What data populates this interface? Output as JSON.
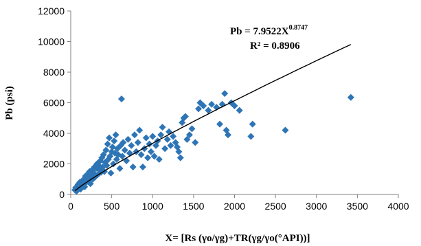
{
  "chart_data": {
    "type": "scatter",
    "title": "",
    "ylabel": "Pb (psi)",
    "xlabel": "X= [Rs (γo/γg)+TR(γg/γo(°API))]",
    "xlim": [
      0,
      4000
    ],
    "ylim": [
      0,
      12000
    ],
    "x_ticks": [
      "0",
      "500",
      "1000",
      "1500",
      "2000",
      "2500",
      "3000",
      "3500",
      "4000"
    ],
    "y_ticks": [
      "0",
      "2000",
      "4000",
      "6000",
      "8000",
      "10000",
      "12000"
    ],
    "grid": false,
    "marker": "diamond",
    "marker_color": "#2E75B6",
    "trend_color": "#000000",
    "trendline": {
      "equation_label": "Pb = 7.9522X",
      "equation_exponent": "0.8747",
      "r2_label": "R² = 0.8906",
      "coefficient": 7.9522,
      "exponent": 0.8747,
      "x_range": [
        50,
        3420
      ]
    },
    "points": [
      [
        50,
        300
      ],
      [
        60,
        450
      ],
      [
        70,
        200
      ],
      [
        80,
        500
      ],
      [
        90,
        650
      ],
      [
        100,
        400
      ],
      [
        110,
        800
      ],
      [
        120,
        350
      ],
      [
        130,
        600
      ],
      [
        140,
        900
      ],
      [
        150,
        700
      ],
      [
        160,
        1000
      ],
      [
        170,
        500
      ],
      [
        180,
        1200
      ],
      [
        190,
        800
      ],
      [
        200,
        1300
      ],
      [
        210,
        950
      ],
      [
        220,
        1100
      ],
      [
        230,
        1500
      ],
      [
        240,
        700
      ],
      [
        250,
        1250
      ],
      [
        260,
        1600
      ],
      [
        270,
        1000
      ],
      [
        280,
        1400
      ],
      [
        290,
        1800
      ],
      [
        300,
        1150
      ],
      [
        310,
        1700
      ],
      [
        320,
        2000
      ],
      [
        330,
        1300
      ],
      [
        340,
        1900
      ],
      [
        350,
        1600
      ],
      [
        360,
        2200
      ],
      [
        370,
        1450
      ],
      [
        380,
        2400
      ],
      [
        390,
        1800
      ],
      [
        400,
        2600
      ],
      [
        410,
        1500
      ],
      [
        420,
        2100
      ],
      [
        430,
        2900
      ],
      [
        440,
        1900
      ],
      [
        450,
        3300
      ],
      [
        460,
        2300
      ],
      [
        470,
        3700
      ],
      [
        480,
        2500
      ],
      [
        490,
        1400
      ],
      [
        500,
        2800
      ],
      [
        510,
        3100
      ],
      [
        520,
        2000
      ],
      [
        530,
        3500
      ],
      [
        540,
        2700
      ],
      [
        550,
        3900
      ],
      [
        560,
        2300
      ],
      [
        570,
        3000
      ],
      [
        580,
        2600
      ],
      [
        600,
        1700
      ],
      [
        610,
        3200
      ],
      [
        620,
        6250
      ],
      [
        630,
        2500
      ],
      [
        640,
        3400
      ],
      [
        660,
        2900
      ],
      [
        680,
        2200
      ],
      [
        700,
        3600
      ],
      [
        720,
        2700
      ],
      [
        740,
        3200
      ],
      [
        760,
        1800
      ],
      [
        780,
        3900
      ],
      [
        800,
        2800
      ],
      [
        820,
        3400
      ],
      [
        840,
        4200
      ],
      [
        860,
        2600
      ],
      [
        880,
        1800
      ],
      [
        900,
        3000
      ],
      [
        920,
        3700
      ],
      [
        940,
        2400
      ],
      [
        960,
        3300
      ],
      [
        980,
        2800
      ],
      [
        1000,
        3800
      ],
      [
        1020,
        2500
      ],
      [
        1040,
        3200
      ],
      [
        1060,
        3500
      ],
      [
        1080,
        2300
      ],
      [
        1100,
        3900
      ],
      [
        1120,
        4400
      ],
      [
        1150,
        3000
      ],
      [
        1180,
        3600
      ],
      [
        1200,
        4100
      ],
      [
        1220,
        3200
      ],
      [
        1250,
        3800
      ],
      [
        1280,
        3400
      ],
      [
        1300,
        3100
      ],
      [
        1320,
        2800
      ],
      [
        1340,
        2400
      ],
      [
        1360,
        4700
      ],
      [
        1380,
        5000
      ],
      [
        1400,
        5100
      ],
      [
        1420,
        3600
      ],
      [
        1450,
        3900
      ],
      [
        1480,
        4300
      ],
      [
        1520,
        3400
      ],
      [
        1560,
        5600
      ],
      [
        1580,
        6000
      ],
      [
        1620,
        5800
      ],
      [
        1680,
        5500
      ],
      [
        1720,
        5900
      ],
      [
        1780,
        5700
      ],
      [
        1820,
        4600
      ],
      [
        1850,
        5900
      ],
      [
        1880,
        6600
      ],
      [
        1900,
        4200
      ],
      [
        1920,
        3900
      ],
      [
        1960,
        6000
      ],
      [
        2000,
        5800
      ],
      [
        2060,
        5500
      ],
      [
        2200,
        3800
      ],
      [
        2220,
        4600
      ],
      [
        2620,
        4200
      ],
      [
        3420,
        6350
      ]
    ]
  }
}
